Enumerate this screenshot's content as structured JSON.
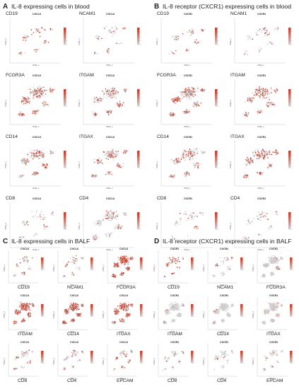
{
  "panels": [
    {
      "letter": "A",
      "title": "IL-8 expressing cells in blood",
      "tag": "CXCL8",
      "gene_position": "top",
      "subplots": [
        {
          "gene": "CD19",
          "density": "sparse",
          "tint": 0.55
        },
        {
          "gene": "NCAM1",
          "density": "sparse",
          "tint": 0.25
        },
        {
          "gene": "FCGR3A",
          "density": "dense",
          "tint": 0.55
        },
        {
          "gene": "ITGAM",
          "density": "medium",
          "tint": 0.45
        },
        {
          "gene": "CD14",
          "density": "medium",
          "tint": 0.45
        },
        {
          "gene": "ITGAX",
          "density": "medium",
          "tint": 0.45
        },
        {
          "gene": "CD8",
          "density": "sparse",
          "tint": 0.2
        },
        {
          "gene": "CD4",
          "density": "medium",
          "tint": 0.15
        }
      ]
    },
    {
      "letter": "B",
      "title": "IL-8 receptor (CXCR1) expressing cells in blood",
      "tag": "CXCR1",
      "gene_position": "top",
      "subplots": [
        {
          "gene": "CD19",
          "density": "sparse",
          "tint": 0.45
        },
        {
          "gene": "NCAM1",
          "density": "sparse",
          "tint": 0.2
        },
        {
          "gene": "FCGR3A",
          "density": "dense",
          "tint": 0.55
        },
        {
          "gene": "ITGAM",
          "density": "medium",
          "tint": 0.45
        },
        {
          "gene": "CD14",
          "density": "medium",
          "tint": 0.4
        },
        {
          "gene": "ITGAX",
          "density": "medium",
          "tint": 0.5
        },
        {
          "gene": "CD8",
          "density": "sparse",
          "tint": 0.25
        },
        {
          "gene": "CD4",
          "density": "sparse",
          "tint": 0.2
        }
      ]
    },
    {
      "letter": "C",
      "title": "IL-8 expressing cells in BALF",
      "tag": "CXCL8",
      "gene_position": "bottom",
      "subplots": [
        {
          "gene": "CD19",
          "density": "sparse",
          "tint": 0.35
        },
        {
          "gene": "NCAM1",
          "density": "sparse",
          "tint": 0.3
        },
        {
          "gene": "FCGR3A",
          "density": "dense",
          "tint": 0.75
        },
        {
          "gene": "ITGAM",
          "density": "dense",
          "tint": 0.7
        },
        {
          "gene": "CD14",
          "density": "dense",
          "tint": 0.7
        },
        {
          "gene": "ITGAX",
          "density": "dense",
          "tint": 0.65
        },
        {
          "gene": "CD8",
          "density": "sparse",
          "tint": 0.3
        },
        {
          "gene": "CD4",
          "density": "sparse",
          "tint": 0.25
        },
        {
          "gene": "EPCAM",
          "density": "sparse",
          "tint": 0.5
        }
      ]
    },
    {
      "letter": "D",
      "title": "IL-8 receptor (CXCR1) expressing cells in BALF",
      "tag": "CXCR1",
      "gene_position": "bottom",
      "subplots": [
        {
          "gene": "CD19",
          "density": "sparse",
          "tint": 0.6
        },
        {
          "gene": "NCAM1",
          "density": "sparse",
          "tint": 0.2
        },
        {
          "gene": "FCGR3A",
          "density": "dense",
          "tint": 0.05
        },
        {
          "gene": "ITGAM",
          "density": "dense",
          "tint": 0.05
        },
        {
          "gene": "CD14",
          "density": "dense",
          "tint": 0.05
        },
        {
          "gene": "ITGAX",
          "density": "dense",
          "tint": 0.05
        },
        {
          "gene": "CD8",
          "density": "sparse",
          "tint": 0.15
        },
        {
          "gene": "CD4",
          "density": "sparse",
          "tint": 0.1
        },
        {
          "gene": "EPCAM",
          "density": "sparse",
          "tint": 0.1
        }
      ]
    }
  ],
  "axis": {
    "x": "tSNE_1",
    "y": "tSNE_2"
  },
  "colors": {
    "high": "#c8321e",
    "low": "#d0d0d0"
  }
}
